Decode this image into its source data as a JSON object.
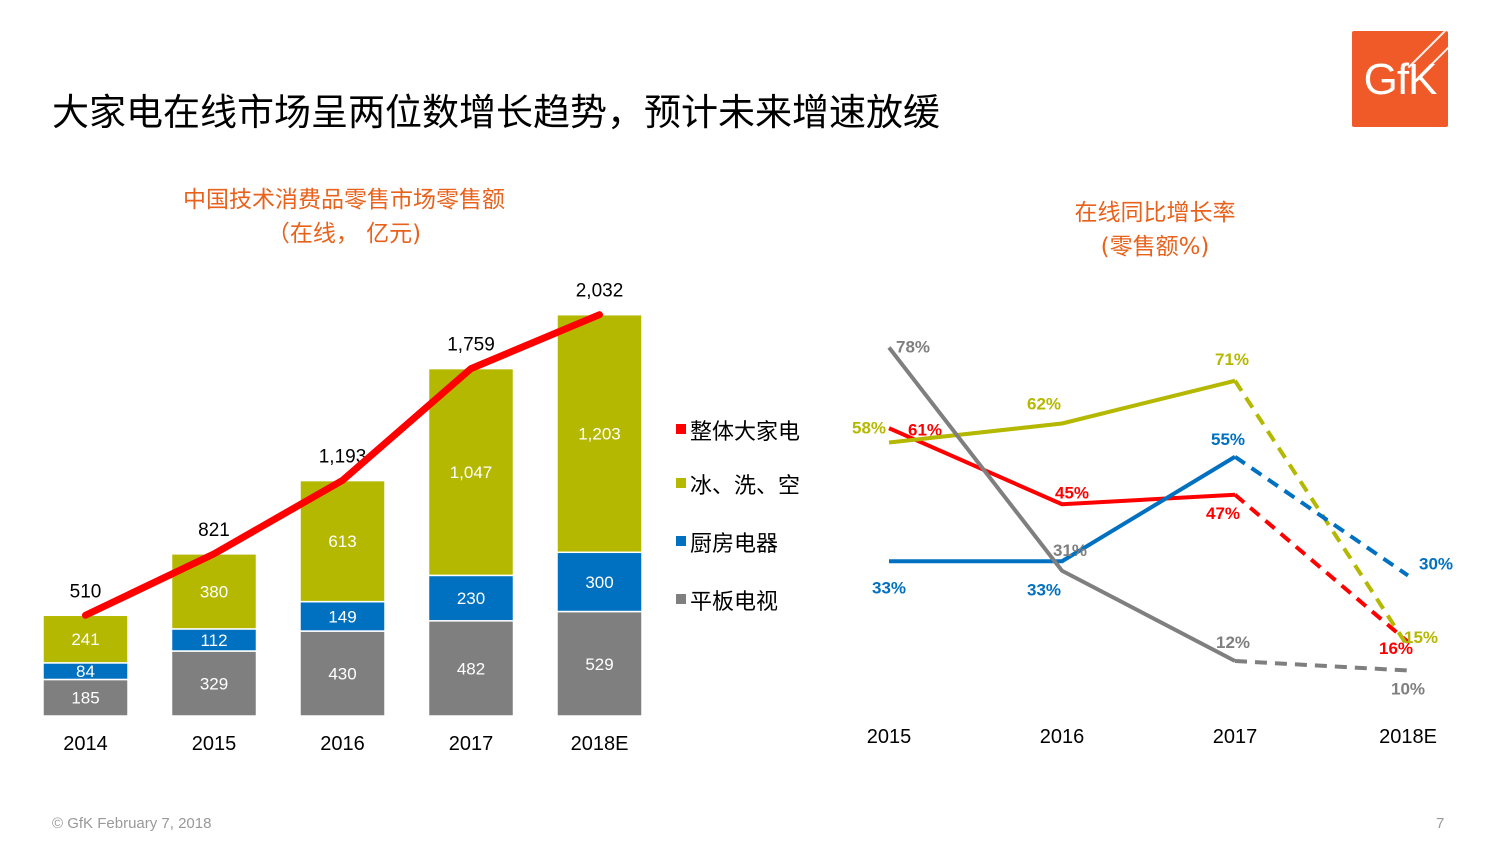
{
  "header": {
    "title": "大家电在线市场呈两位数增长趋势，预计未来增速放缓"
  },
  "logo": {
    "text": "GfK"
  },
  "colors": {
    "red": "#ff0000",
    "olive": "#b5b800",
    "blue": "#0070c0",
    "gray": "#7f7f7f",
    "orange": "#e8621c"
  },
  "legend": {
    "items": [
      {
        "label": "整体大家电",
        "color": "#ff0000"
      },
      {
        "label": "冰、洗、空",
        "color": "#b5b800"
      },
      {
        "label": "厨房电器",
        "color": "#0070c0"
      },
      {
        "label": "平板电视",
        "color": "#7f7f7f"
      }
    ]
  },
  "chart_data": [
    {
      "type": "bar",
      "stacked": true,
      "title": "中国技术消费品零售市场零售额",
      "subtitle": "（在线， 亿元)",
      "categories": [
        "2014",
        "2015",
        "2016",
        "2017",
        "2018E"
      ],
      "series": [
        {
          "name": "平板电视",
          "values": [
            185,
            329,
            430,
            482,
            529
          ],
          "labels": [
            "185",
            "329",
            "430",
            "482",
            "529"
          ]
        },
        {
          "name": "厨房电器",
          "values": [
            84,
            112,
            149,
            230,
            300
          ],
          "labels": [
            "84",
            "112",
            "149",
            "230",
            "300"
          ]
        },
        {
          "name": "冰、洗、空",
          "values": [
            241,
            380,
            613,
            1047,
            1203
          ],
          "labels": [
            "241",
            "380",
            "613",
            "1,047",
            "1,203"
          ]
        }
      ],
      "totals": {
        "name": "整体大家电",
        "values": [
          510,
          821,
          1193,
          1759,
          2032
        ],
        "labels": [
          "510",
          "821",
          "1,193",
          "1,759",
          "2,032"
        ]
      },
      "ylim": [
        0,
        2100
      ],
      "grid": false
    },
    {
      "type": "line",
      "title": "在线同比增长率",
      "subtitle": "(零售额%)",
      "categories": [
        "2015",
        "2016",
        "2017",
        "2018E"
      ],
      "forecast_from_index": 2,
      "series": [
        {
          "name": "整体大家电",
          "values": [
            61,
            45,
            47,
            16
          ],
          "labels": [
            "61%",
            "45%",
            "47%",
            "16%"
          ]
        },
        {
          "name": "冰、洗、空",
          "values": [
            58,
            62,
            71,
            15
          ],
          "labels": [
            "58%",
            "62%",
            "71%",
            "15%"
          ]
        },
        {
          "name": "厨房电器",
          "values": [
            33,
            33,
            55,
            30
          ],
          "labels": [
            "33%",
            "33%",
            "55%",
            "30%"
          ]
        },
        {
          "name": "平板电视",
          "values": [
            78,
            31,
            12,
            10
          ],
          "labels": [
            "78%",
            "31%",
            "12%",
            "10%"
          ]
        }
      ],
      "ylim": [
        0,
        85
      ],
      "grid": false
    }
  ],
  "footer": {
    "text": "© GfK February 7, 2018",
    "page": "7"
  }
}
